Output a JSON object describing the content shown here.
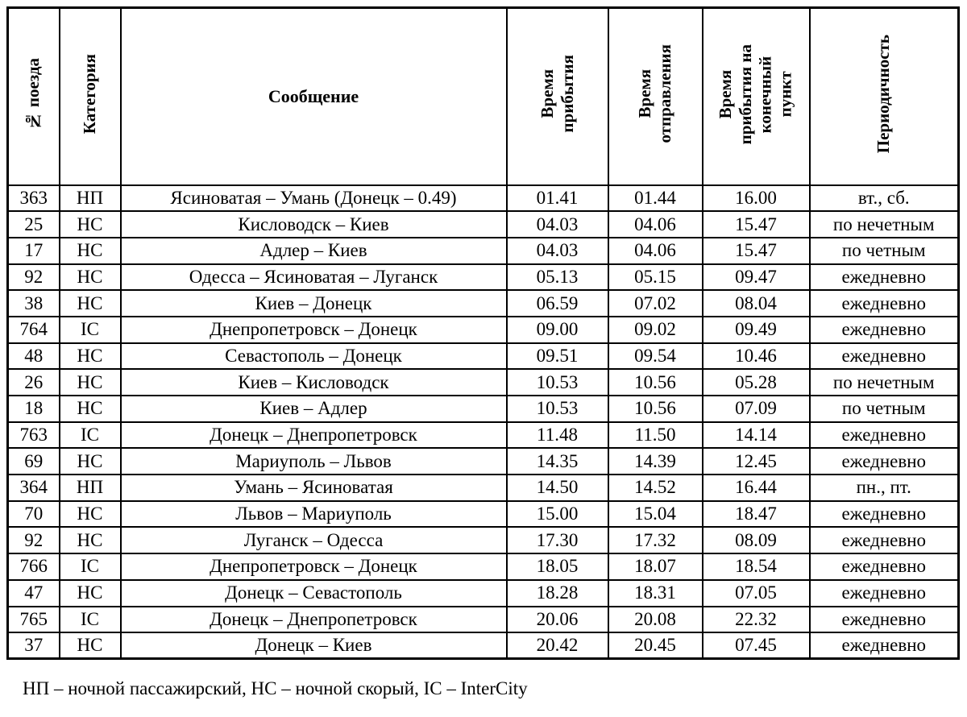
{
  "table": {
    "columns": [
      {
        "key": "train_number",
        "label": "№ поезда",
        "orientation": "vertical"
      },
      {
        "key": "category",
        "label": "Категория",
        "orientation": "vertical"
      },
      {
        "key": "route",
        "label": "Сообщение",
        "orientation": "horizontal"
      },
      {
        "key": "arrival_time",
        "label": "Время\nприбытия",
        "orientation": "vertical"
      },
      {
        "key": "departure_time",
        "label": "Время\nотправления",
        "orientation": "vertical"
      },
      {
        "key": "final_arrival_time",
        "label": "Время\nприбытия на\nконечный\nпункт",
        "orientation": "vertical"
      },
      {
        "key": "periodicity",
        "label": "Периодичность",
        "orientation": "vertical"
      }
    ],
    "rows": [
      [
        "363",
        "НП",
        "Ясиноватая – Умань (Донецк – 0.49)",
        "01.41",
        "01.44",
        "16.00",
        "вт., сб."
      ],
      [
        "25",
        "НС",
        "Кисловодск – Киев",
        "04.03",
        "04.06",
        "15.47",
        "по нечетным"
      ],
      [
        "17",
        "НС",
        "Адлер – Киев",
        "04.03",
        "04.06",
        "15.47",
        "по четным"
      ],
      [
        "92",
        "НС",
        "Одесса – Ясиноватая – Луганск",
        "05.13",
        "05.15",
        "09.47",
        "ежедневно"
      ],
      [
        "38",
        "НС",
        "Киев – Донецк",
        "06.59",
        "07.02",
        "08.04",
        "ежедневно"
      ],
      [
        "764",
        "ІС",
        "Днепропетровск – Донецк",
        "09.00",
        "09.02",
        "09.49",
        "ежедневно"
      ],
      [
        "48",
        "НС",
        "Севастополь – Донецк",
        "09.51",
        "09.54",
        "10.46",
        "ежедневно"
      ],
      [
        "26",
        "НС",
        "Киев – Кисловодск",
        "10.53",
        "10.56",
        "05.28",
        "по нечетным"
      ],
      [
        "18",
        "НС",
        "Киев – Адлер",
        "10.53",
        "10.56",
        "07.09",
        "по четным"
      ],
      [
        "763",
        "ІС",
        "Донецк – Днепропетровск",
        "11.48",
        "11.50",
        "14.14",
        "ежедневно"
      ],
      [
        "69",
        "НС",
        "Мариуполь – Львов",
        "14.35",
        "14.39",
        "12.45",
        "ежедневно"
      ],
      [
        "364",
        "НП",
        "Умань – Ясиноватая",
        "14.50",
        "14.52",
        "16.44",
        "пн., пт."
      ],
      [
        "70",
        "НС",
        "Львов – Мариуполь",
        "15.00",
        "15.04",
        "18.47",
        "ежедневно"
      ],
      [
        "92",
        "НС",
        "Луганск – Одесса",
        "17.30",
        "17.32",
        "08.09",
        "ежедневно"
      ],
      [
        "766",
        "ІС",
        "Днепропетровск – Донецк",
        "18.05",
        "18.07",
        "18.54",
        "ежедневно"
      ],
      [
        "47",
        "НС",
        "Донецк – Севастополь",
        "18.28",
        "18.31",
        "07.05",
        "ежедневно"
      ],
      [
        "765",
        "ІС",
        "Донецк – Днепропетровск",
        "20.06",
        "20.08",
        "22.32",
        "ежедневно"
      ],
      [
        "37",
        "НС",
        "Донецк – Киев",
        "20.42",
        "20.45",
        "07.45",
        "ежедневно"
      ]
    ],
    "footnote": "НП – ночной пассажирский, НС – ночной скорый, ІС – InterCity"
  }
}
